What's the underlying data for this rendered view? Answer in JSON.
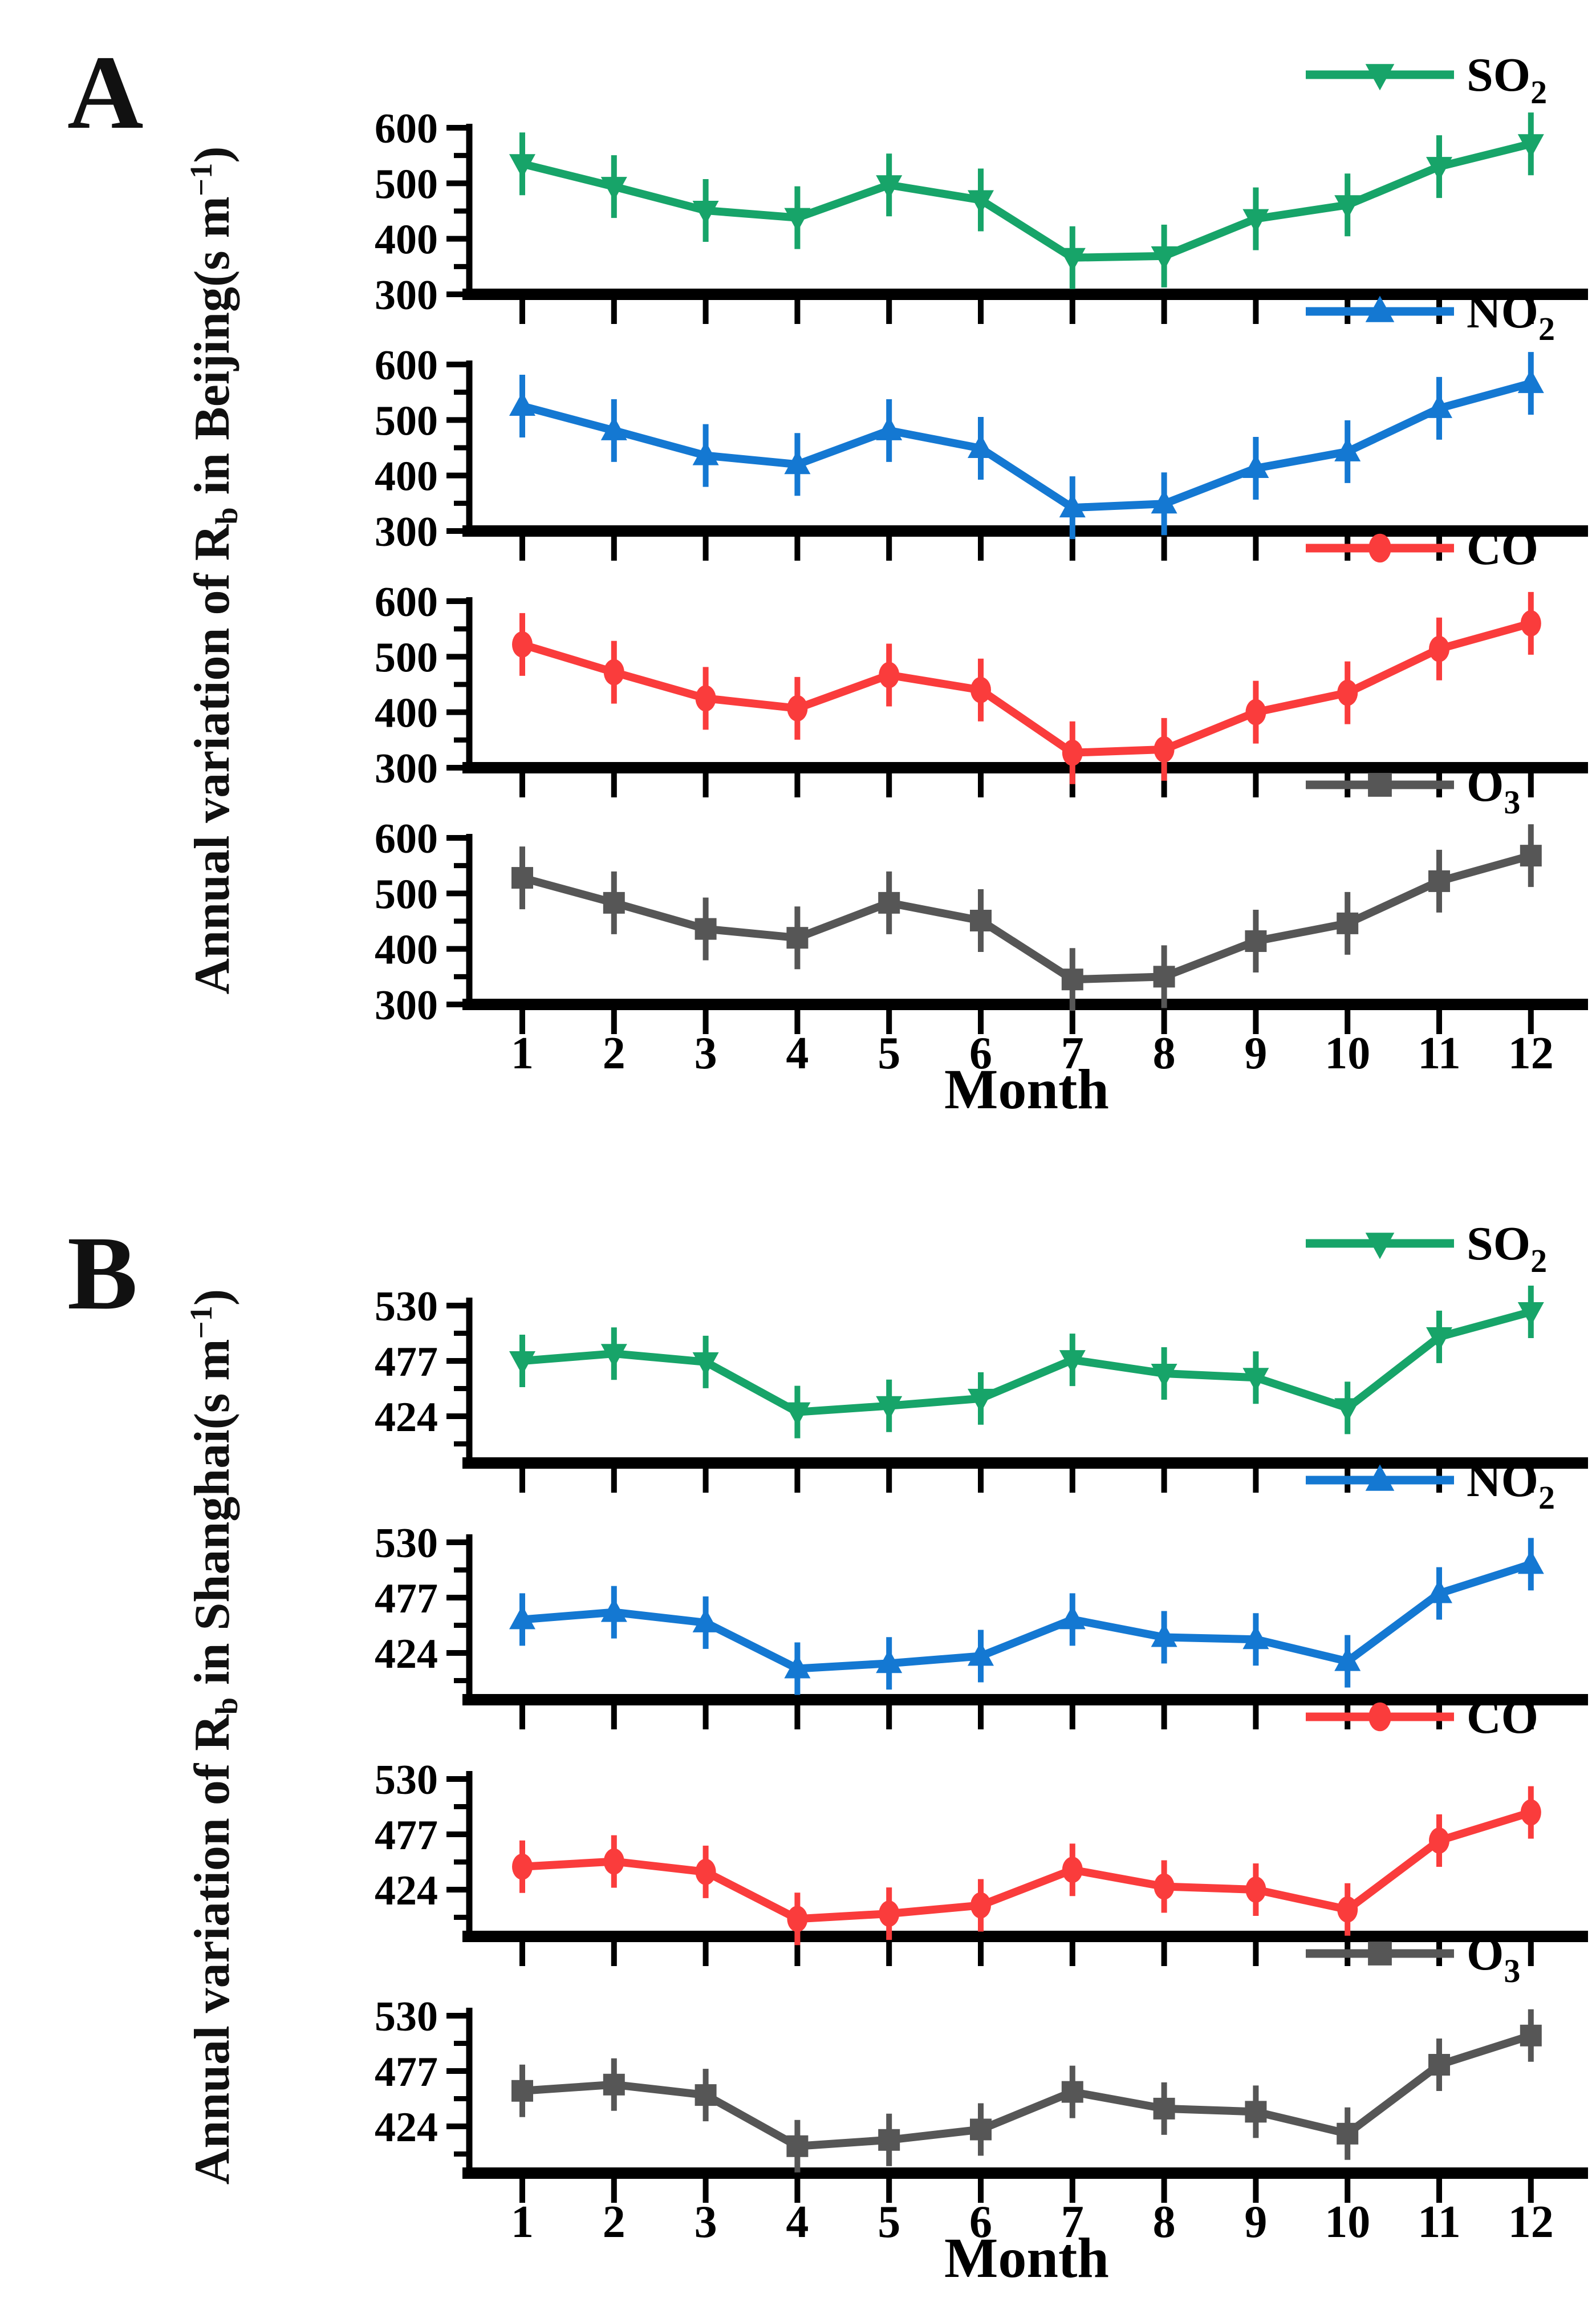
{
  "figure": {
    "panels": [
      {
        "label": "A",
        "y_title": {
          "prefix": "Annual variation of R",
          "sub": "b",
          "mid": " in Beijing(s m",
          "sup": "−1",
          "suffix": ")"
        },
        "x_title": "Month",
        "y_tick_labels": [
          "600",
          "500",
          "400",
          "300"
        ],
        "x_tick_labels": [
          "1",
          "2",
          "3",
          "4",
          "5",
          "6",
          "7",
          "8",
          "9",
          "10",
          "11",
          "12"
        ]
      },
      {
        "label": "B",
        "y_title": {
          "prefix": "Annual variation of R",
          "sub": "b",
          "mid": " in Shanghai(s m",
          "sup": "−1",
          "suffix": ")"
        },
        "x_title": "Month",
        "y_tick_labels": [
          "530",
          "477",
          "424"
        ],
        "x_tick_labels": [
          "1",
          "2",
          "3",
          "4",
          "5",
          "6",
          "7",
          "8",
          "9",
          "10",
          "11",
          "12"
        ]
      }
    ]
  },
  "colors": {
    "so2": "#17A469",
    "no2": "#1478D2",
    "co": "#FA3C3C",
    "o3": "#565656",
    "axis": "#000000"
  },
  "chart_data": [
    {
      "panel": "A",
      "type": "line",
      "series_label": "SO2",
      "legend": {
        "main": "SO",
        "sub": "2"
      },
      "color_key": "so2",
      "marker": "triangle-down",
      "error_bars": true,
      "x": [
        1,
        2,
        3,
        4,
        5,
        6,
        7,
        8,
        9,
        10,
        11,
        12
      ],
      "values": [
        535,
        494,
        451,
        438,
        497,
        470,
        366,
        369,
        436,
        461,
        530,
        571
      ],
      "xlabel": "Month",
      "ylabel": "Annual variation of Rb in Beijing(s m-1)",
      "y_major_ticks": [
        600,
        500,
        400,
        300
      ],
      "y_minor_ticks": [
        550,
        450,
        350
      ],
      "ylim": [
        300,
        607
      ],
      "grid": false,
      "legend_position": "top-right"
    },
    {
      "panel": "A",
      "type": "line",
      "series_label": "NO2",
      "legend": {
        "main": "NO",
        "sub": "2"
      },
      "color_key": "no2",
      "marker": "triangle-up",
      "error_bars": true,
      "x": [
        1,
        2,
        3,
        4,
        5,
        6,
        7,
        8,
        9,
        10,
        11,
        12
      ],
      "values": [
        525,
        481,
        436,
        420,
        481,
        449,
        342,
        349,
        413,
        443,
        521,
        566
      ],
      "xlabel": "Month",
      "ylabel": "Annual variation of Rb in Beijing(s m-1)",
      "y_major_ticks": [
        600,
        500,
        400,
        300
      ],
      "y_minor_ticks": [
        550,
        450,
        350
      ],
      "ylim": [
        300,
        607
      ],
      "grid": false,
      "legend_position": "top-right"
    },
    {
      "panel": "A",
      "type": "line",
      "series_label": "CO",
      "legend": {
        "main": "CO",
        "sub": ""
      },
      "color_key": "co",
      "marker": "circle",
      "error_bars": true,
      "x": [
        1,
        2,
        3,
        4,
        5,
        6,
        7,
        8,
        9,
        10,
        11,
        12
      ],
      "values": [
        522,
        472,
        425,
        407,
        467,
        440,
        327,
        333,
        400,
        435,
        514,
        560
      ],
      "xlabel": "Month",
      "ylabel": "Annual variation of Rb in Beijing(s m-1)",
      "y_major_ticks": [
        600,
        500,
        400,
        300
      ],
      "y_minor_ticks": [
        550,
        450,
        350
      ],
      "ylim": [
        300,
        607
      ],
      "grid": false,
      "legend_position": "top-right"
    },
    {
      "panel": "A",
      "type": "line",
      "series_label": "O3",
      "legend": {
        "main": "O",
        "sub": "3"
      },
      "color_key": "o3",
      "marker": "square",
      "error_bars": true,
      "x": [
        1,
        2,
        3,
        4,
        5,
        6,
        7,
        8,
        9,
        10,
        11,
        12
      ],
      "values": [
        528,
        483,
        436,
        420,
        483,
        451,
        345,
        350,
        414,
        446,
        522,
        568
      ],
      "xlabel": "Month",
      "ylabel": "Annual variation of Rb in Beijing(s m-1)",
      "y_major_ticks": [
        600,
        500,
        400,
        300
      ],
      "y_minor_ticks": [
        550,
        450,
        350
      ],
      "ylim": [
        300,
        607
      ],
      "grid": false,
      "legend_position": "top-right"
    },
    {
      "panel": "B",
      "type": "line",
      "series_label": "SO2",
      "legend": {
        "main": "SO",
        "sub": "2"
      },
      "color_key": "so2",
      "marker": "triangle-down",
      "error_bars": true,
      "x": [
        1,
        2,
        3,
        4,
        5,
        6,
        7,
        8,
        9,
        10,
        11,
        12
      ],
      "values": [
        477,
        484,
        476,
        428,
        434,
        441,
        478,
        465,
        461,
        432,
        500,
        524
      ],
      "xlabel": "Month",
      "ylabel": "Annual variation of Rb in Shanghai(s m-1)",
      "y_major_ticks": [
        530,
        477,
        424
      ],
      "y_minor_ticks": [
        503.5,
        450.5,
        397.5
      ],
      "ylim": [
        379,
        538
      ],
      "grid": false,
      "legend_position": "top-right"
    },
    {
      "panel": "B",
      "type": "line",
      "series_label": "NO2",
      "legend": {
        "main": "NO",
        "sub": "2"
      },
      "color_key": "no2",
      "marker": "triangle-up",
      "error_bars": true,
      "x": [
        1,
        2,
        3,
        4,
        5,
        6,
        7,
        8,
        9,
        10,
        11,
        12
      ],
      "values": [
        456,
        463,
        453,
        409,
        414,
        421,
        456,
        439,
        437,
        416,
        481,
        509
      ],
      "xlabel": "Month",
      "ylabel": "Annual variation of Rb in Shanghai(s m-1)",
      "y_major_ticks": [
        530,
        477,
        424
      ],
      "y_minor_ticks": [
        503.5,
        450.5,
        397.5
      ],
      "ylim": [
        379,
        538
      ],
      "grid": false,
      "legend_position": "top-right"
    },
    {
      "panel": "B",
      "type": "line",
      "series_label": "CO",
      "legend": {
        "main": "CO",
        "sub": ""
      },
      "color_key": "co",
      "marker": "circle",
      "error_bars": true,
      "x": [
        1,
        2,
        3,
        4,
        5,
        6,
        7,
        8,
        9,
        10,
        11,
        12
      ],
      "values": [
        446,
        451,
        441,
        396,
        401,
        409,
        443,
        427,
        424,
        405,
        471,
        498
      ],
      "xlabel": "Month",
      "ylabel": "Annual variation of Rb in Shanghai(s m-1)",
      "y_major_ticks": [
        530,
        477,
        424
      ],
      "y_minor_ticks": [
        503.5,
        450.5,
        397.5
      ],
      "ylim": [
        379,
        538
      ],
      "grid": false,
      "legend_position": "top-right"
    },
    {
      "panel": "B",
      "type": "line",
      "series_label": "O3",
      "legend": {
        "main": "O",
        "sub": "3"
      },
      "color_key": "o3",
      "marker": "square",
      "error_bars": true,
      "x": [
        1,
        2,
        3,
        4,
        5,
        6,
        7,
        8,
        9,
        10,
        11,
        12
      ],
      "values": [
        458,
        464,
        454,
        405,
        411,
        421,
        457,
        441,
        438,
        417,
        483,
        511
      ],
      "xlabel": "Month",
      "ylabel": "Annual variation of Rb in Shanghai(s m-1)",
      "y_major_ticks": [
        530,
        477,
        424
      ],
      "y_minor_ticks": [
        503.5,
        450.5,
        397.5
      ],
      "ylim": [
        379,
        538
      ],
      "grid": false,
      "legend_position": "top-right"
    }
  ]
}
